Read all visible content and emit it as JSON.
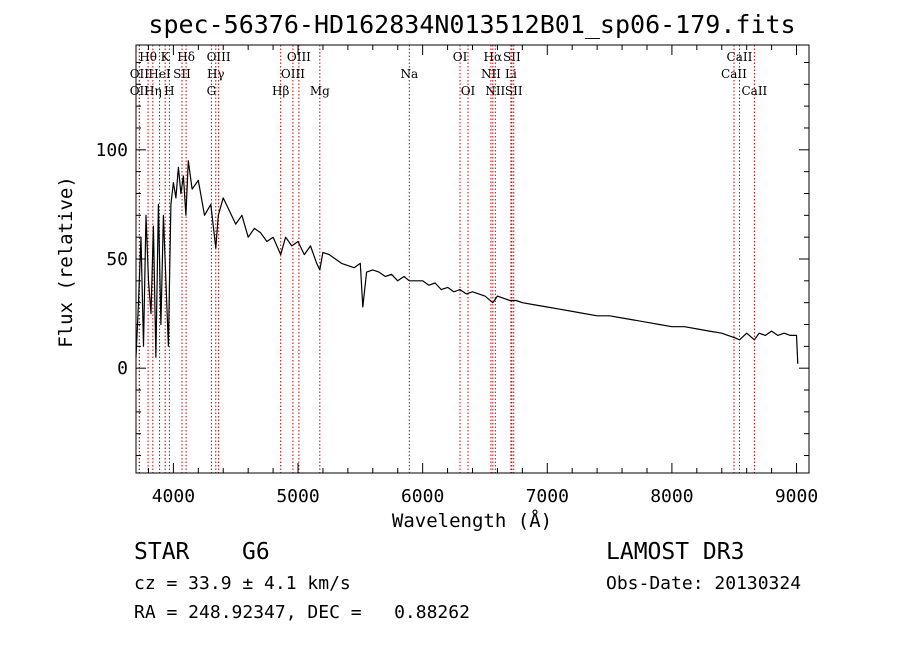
{
  "chart_data": {
    "type": "line",
    "title": "spec-56376-HD162834N013512B01_sp06-179.fits",
    "xlabel": "Wavelength (Å)",
    "ylabel": "Flux (relative)",
    "xlim": [
      3700,
      9100
    ],
    "ylim": [
      -48,
      148
    ],
    "xticks": [
      4000,
      5000,
      6000,
      7000,
      8000,
      9000
    ],
    "yticks": [
      0,
      50,
      100
    ],
    "series": [
      {
        "name": "flux",
        "x": [
          3700,
          3720,
          3740,
          3760,
          3780,
          3800,
          3820,
          3840,
          3860,
          3880,
          3900,
          3920,
          3940,
          3960,
          3970,
          3980,
          4000,
          4020,
          4040,
          4060,
          4080,
          4100,
          4120,
          4150,
          4200,
          4250,
          4300,
          4340,
          4360,
          4400,
          4450,
          4500,
          4550,
          4600,
          4650,
          4700,
          4750,
          4800,
          4861,
          4900,
          4950,
          5000,
          5050,
          5100,
          5150,
          5175,
          5200,
          5250,
          5300,
          5350,
          5400,
          5450,
          5500,
          5520,
          5550,
          5600,
          5650,
          5700,
          5750,
          5800,
          5850,
          5893,
          5950,
          6000,
          6050,
          6100,
          6150,
          6200,
          6250,
          6300,
          6350,
          6400,
          6450,
          6500,
          6563,
          6600,
          6650,
          6700,
          6750,
          6800,
          6900,
          7000,
          7100,
          7200,
          7300,
          7400,
          7500,
          7600,
          7700,
          7800,
          7900,
          8000,
          8100,
          8200,
          8300,
          8400,
          8450,
          8500,
          8542,
          8600,
          8662,
          8700,
          8750,
          8800,
          8850,
          8900,
          8950,
          9000,
          9010
        ],
        "values": [
          5,
          30,
          60,
          10,
          70,
          40,
          25,
          65,
          5,
          75,
          20,
          70,
          40,
          10,
          45,
          75,
          85,
          78,
          92,
          80,
          88,
          70,
          95,
          82,
          86,
          70,
          75,
          55,
          70,
          78,
          72,
          66,
          70,
          60,
          64,
          62,
          58,
          60,
          52,
          60,
          56,
          58,
          52,
          56,
          48,
          45,
          53,
          52,
          50,
          48,
          47,
          46,
          48,
          28,
          44,
          45,
          44,
          42,
          43,
          40,
          42,
          40,
          40,
          40,
          38,
          39,
          36,
          37,
          35,
          36,
          34,
          35,
          34,
          33,
          30,
          33,
          32,
          31,
          31,
          30,
          29,
          28,
          27,
          26,
          25,
          24,
          24,
          23,
          22,
          21,
          20,
          19,
          19,
          18,
          17,
          16,
          15,
          14,
          13,
          16,
          13,
          16,
          15,
          17,
          15,
          16,
          15,
          15,
          2
        ]
      }
    ],
    "lines": [
      {
        "label": "Hθ",
        "wl": 3797,
        "row": 0
      },
      {
        "label": "OII",
        "wl": 3727,
        "row": 1
      },
      {
        "label": "OII",
        "wl": 3727,
        "row": 2
      },
      {
        "label": "Hη",
        "wl": 3835,
        "row": 2
      },
      {
        "label": "HeI",
        "wl": 3889,
        "row": 1
      },
      {
        "label": "K",
        "wl": 3934,
        "row": 0
      },
      {
        "label": "SII",
        "wl": 4069,
        "row": 1
      },
      {
        "label": "H",
        "wl": 3968,
        "row": 2
      },
      {
        "label": "Hδ",
        "wl": 4102,
        "row": 0
      },
      {
        "label": "OIII",
        "wl": 4363,
        "row": 0
      },
      {
        "label": "Hγ",
        "wl": 4340,
        "row": 1
      },
      {
        "label": "G",
        "wl": 4305,
        "row": 2
      },
      {
        "label": "Hβ",
        "wl": 4861,
        "row": 2
      },
      {
        "label": "OIII",
        "wl": 5007,
        "row": 0
      },
      {
        "label": "OIII",
        "wl": 4959,
        "row": 1
      },
      {
        "label": "Mg",
        "wl": 5175,
        "row": 2
      },
      {
        "label": "Na",
        "wl": 5893,
        "row": 1
      },
      {
        "label": "OI",
        "wl": 6300,
        "row": 0
      },
      {
        "label": "OI",
        "wl": 6364,
        "row": 2
      },
      {
        "label": "Hα",
        "wl": 6563,
        "row": 0
      },
      {
        "label": "NII",
        "wl": 6548,
        "row": 1
      },
      {
        "label": "NII",
        "wl": 6583,
        "row": 2
      },
      {
        "label": "SII",
        "wl": 6716,
        "row": 0
      },
      {
        "label": "Li",
        "wl": 6708,
        "row": 1
      },
      {
        "label": "SII",
        "wl": 6731,
        "row": 2
      },
      {
        "label": "CaII",
        "wl": 8542,
        "row": 0
      },
      {
        "label": "CaII",
        "wl": 8498,
        "row": 1
      },
      {
        "label": "CaII",
        "wl": 8662,
        "row": 2
      }
    ],
    "line_color": "#cc0000",
    "series_color": "#000000"
  },
  "info": {
    "class_label": "STAR",
    "subclass": "G6",
    "survey": "LAMOST DR3",
    "cz": "cz = 33.9 ± 4.1 km/s",
    "obs_date": "Obs-Date: 20130324",
    "radec": "RA = 248.92347, DEC =   0.88262"
  }
}
